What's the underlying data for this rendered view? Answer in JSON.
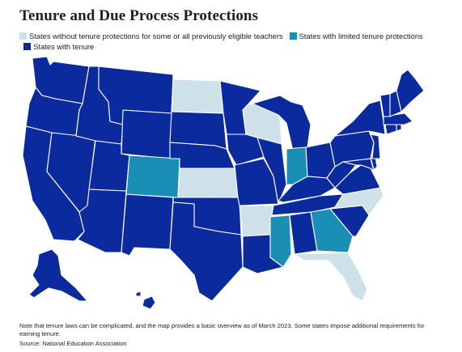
{
  "title": "Tenure and Due Process Protections",
  "legend": [
    {
      "key": "none",
      "label": "States without tenure protections for some or all previously eligible teachers",
      "color": "#cfe1e8"
    },
    {
      "key": "limited",
      "label": "States with limited tenure protections",
      "color": "#1a8fb5"
    },
    {
      "key": "tenure",
      "label": "States with tenure",
      "color": "#0a2a9e"
    }
  ],
  "states": {
    "none": [
      "North Dakota",
      "Wisconsin",
      "Kansas",
      "Arkansas",
      "North Carolina",
      "Florida"
    ],
    "limited": [
      "Colorado",
      "Indiana",
      "Mississippi",
      "Georgia"
    ],
    "tenure": [
      "Washington",
      "Oregon",
      "California",
      "Nevada",
      "Idaho",
      "Montana",
      "Wyoming",
      "Utah",
      "Arizona",
      "New Mexico",
      "Texas",
      "Oklahoma",
      "Nebraska",
      "South Dakota",
      "Minnesota",
      "Iowa",
      "Missouri",
      "Louisiana",
      "Illinois",
      "Michigan",
      "Ohio",
      "Kentucky",
      "Tennessee",
      "Alabama",
      "South Carolina",
      "Virginia",
      "West Virginia",
      "Maryland",
      "Delaware",
      "New Jersey",
      "Pennsylvania",
      "New York",
      "Connecticut",
      "Rhode Island",
      "Massachusetts",
      "Vermont",
      "New Hampshire",
      "Maine",
      "Alaska",
      "Hawaii"
    ]
  },
  "footer": {
    "note": "Note that tenure laws can be complicated, and the map provides a basic overview as of March 2023. Some states impose additional requirements for earning tenure.",
    "source": "Source: National Education Association"
  }
}
